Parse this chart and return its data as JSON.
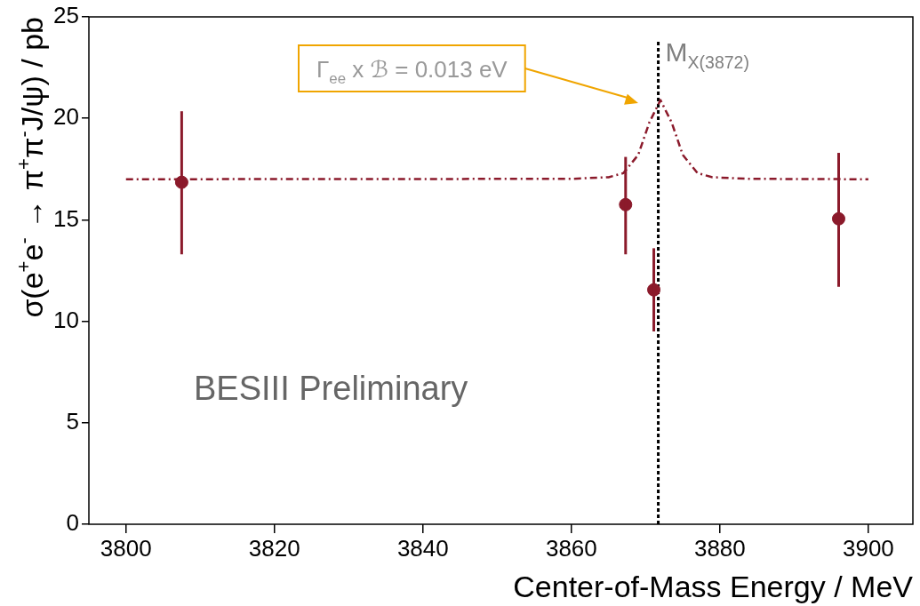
{
  "chart_data": {
    "type": "scatter",
    "xlabel": "Center-of-Mass Energy / MeV",
    "ylabel": "σ(e$^{+}$e$^{-}$ → π$^{+}$π$^{-}$J/ψ) / pb",
    "xlim": [
      3795,
      3906
    ],
    "ylim": [
      0,
      25
    ],
    "xticks": [
      3800,
      3820,
      3840,
      3860,
      3880,
      3900
    ],
    "yticks": [
      0,
      5,
      10,
      15,
      20,
      25
    ],
    "grid": false,
    "legend": false,
    "marker": "circle",
    "series": [
      {
        "type": "scatter",
        "color": "#8b1a2b",
        "x": [
          3807.5,
          3867.3,
          3871.1,
          3896.0
        ],
        "values": [
          16.85,
          15.75,
          11.55,
          15.05
        ],
        "errors": [
          [
            13.3,
            20.35
          ],
          [
            13.3,
            18.1
          ],
          [
            9.5,
            13.6
          ],
          [
            11.7,
            18.3
          ]
        ]
      },
      {
        "type": "line",
        "color": "#8b1a2b",
        "line_style": "dashed",
        "marker": "none",
        "x": [
          3800,
          3860,
          3865,
          3867,
          3869,
          3870.5,
          3872,
          3873.5,
          3875,
          3877,
          3879,
          3884,
          3900
        ],
        "values": [
          17,
          17.02,
          17.1,
          17.3,
          18.2,
          19.8,
          20.9,
          19.8,
          18.2,
          17.3,
          17.1,
          17.02,
          17
        ]
      }
    ],
    "ref_lines": [
      {
        "axis": "x",
        "value": 3871.7,
        "label": "M$_{X(3872)}$",
        "color": "#000000",
        "line_style": "dashed"
      }
    ],
    "annotations": [
      "Γ$_{ee}$ x ℬ = 0.013 eV",
      "BESIII Preliminary"
    ]
  }
}
